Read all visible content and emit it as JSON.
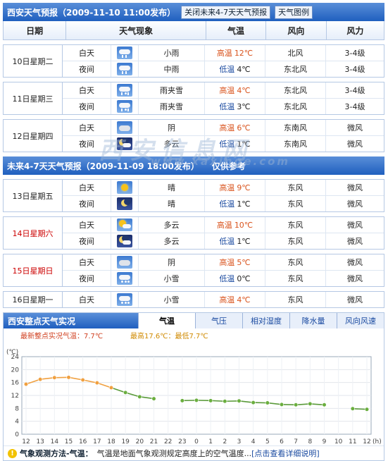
{
  "header": {
    "title": "西安天气预报（2009-11-10 11:00发布）",
    "btn_close": "关闭未来4-7天天气预报",
    "btn_legend": "天气图例"
  },
  "columns": {
    "date": "日期",
    "phenom": "天气现象",
    "temp": "气温",
    "wind_dir": "风向",
    "wind_force": "风力"
  },
  "near_days": [
    {
      "date": "10日星期二",
      "red": false,
      "rows": [
        {
          "period": "白天",
          "icon": "rain",
          "phenom": "小雨",
          "temp_label": "高温",
          "temp": "12℃",
          "low": false,
          "wind_dir": "北风",
          "wind_force": "3-4级"
        },
        {
          "period": "夜间",
          "icon": "rain",
          "phenom": "中雨",
          "temp_label": "低温",
          "temp": "4℃",
          "low": true,
          "wind_dir": "东北风",
          "wind_force": "3-4级"
        }
      ]
    },
    {
      "date": "11日星期三",
      "red": false,
      "rows": [
        {
          "period": "白天",
          "icon": "rs",
          "phenom": "雨夹雪",
          "temp_label": "高温",
          "temp": "4℃",
          "low": false,
          "wind_dir": "东北风",
          "wind_force": "3-4级"
        },
        {
          "period": "夜间",
          "icon": "rs",
          "phenom": "雨夹雪",
          "temp_label": "低温",
          "temp": "3℃",
          "low": true,
          "wind_dir": "东北风",
          "wind_force": "3-4级"
        }
      ]
    },
    {
      "date": "12日星期四",
      "red": false,
      "rows": [
        {
          "period": "白天",
          "icon": "cloud",
          "phenom": "阴",
          "temp_label": "高温",
          "temp": "6℃",
          "low": false,
          "wind_dir": "东南风",
          "wind_force": "微风"
        },
        {
          "period": "夜间",
          "icon": "nightcloud",
          "phenom": "多云",
          "temp_label": "低温",
          "temp": "1℃",
          "low": true,
          "wind_dir": "东南风",
          "wind_force": "微风"
        }
      ]
    }
  ],
  "future_header": {
    "title": "未来4-7天天气预报（2009-11-09 18:00发布）",
    "note": "仅供参考"
  },
  "far_days": [
    {
      "date": "13日星期五",
      "red": false,
      "rows": [
        {
          "period": "白天",
          "icon": "sun",
          "phenom": "晴",
          "temp_label": "高温",
          "temp": "9℃",
          "low": false,
          "wind_dir": "东风",
          "wind_force": "微风"
        },
        {
          "period": "夜间",
          "icon": "moon",
          "phenom": "晴",
          "temp_label": "低温",
          "temp": "1℃",
          "low": true,
          "wind_dir": "东风",
          "wind_force": "微风"
        }
      ]
    },
    {
      "date": "14日星期六",
      "red": true,
      "rows": [
        {
          "period": "白天",
          "icon": "suncloud",
          "phenom": "多云",
          "temp_label": "高温",
          "temp": "10℃",
          "low": false,
          "wind_dir": "东风",
          "wind_force": "微风"
        },
        {
          "period": "夜间",
          "icon": "nightcloud",
          "phenom": "多云",
          "temp_label": "低温",
          "temp": "1℃",
          "low": true,
          "wind_dir": "东风",
          "wind_force": "微风"
        }
      ]
    },
    {
      "date": "15日星期日",
      "red": true,
      "rows": [
        {
          "period": "白天",
          "icon": "cloud",
          "phenom": "阴",
          "temp_label": "高温",
          "temp": "5℃",
          "low": false,
          "wind_dir": "东风",
          "wind_force": "微风"
        },
        {
          "period": "夜间",
          "icon": "snow",
          "phenom": "小雪",
          "temp_label": "低温",
          "temp": "0℃",
          "low": true,
          "wind_dir": "东风",
          "wind_force": "微风"
        }
      ]
    },
    {
      "date": "16日星期一",
      "red": false,
      "rows": [
        {
          "period": "白天",
          "icon": "snow",
          "phenom": "小雪",
          "temp_label": "高温",
          "temp": "4℃",
          "low": false,
          "wind_dir": "东风",
          "wind_force": "微风"
        }
      ]
    }
  ],
  "watermark": {
    "big": "西安信息网",
    "small": "www.xaxinge.com"
  },
  "live": {
    "title": "西安整点天气实况",
    "tabs": [
      "气温",
      "气压",
      "相对湿度",
      "降水量",
      "风向风速"
    ],
    "active_tab": 0
  },
  "chart_data": {
    "type": "line",
    "unit_label": "(℃)",
    "x_unit": "(h)",
    "latest_text": "最新整点实况气温：7.7℃",
    "maxmin_text": "最高17.6℃：最低7.7℃",
    "ylim": [
      0,
      24
    ],
    "yticks": [
      0,
      4,
      8,
      12,
      16,
      20,
      24
    ],
    "categories": [
      "12",
      "13",
      "14",
      "15",
      "16",
      "17",
      "18",
      "19",
      "20",
      "21",
      "22",
      "23",
      "0",
      "1",
      "2",
      "3",
      "4",
      "5",
      "6",
      "7",
      "8",
      "9",
      "10",
      "11",
      "12"
    ],
    "series": [
      {
        "values": [
          15.5,
          17.0,
          17.5,
          17.6,
          16.8,
          15.9,
          14.4,
          12.9,
          11.6,
          11.0,
          null,
          10.4,
          10.5,
          10.4,
          10.2,
          10.3,
          9.8,
          9.7,
          9.2,
          9.1,
          9.4,
          9.1,
          null,
          7.9,
          7.7
        ]
      }
    ],
    "grid": true
  },
  "footer": {
    "label": "气象观测方法-气温：",
    "text": "气温是地面气象观测规定高度上的空气温度...",
    "link": "[点击查看详细说明]"
  },
  "colors": {
    "header_blue": "#1f5fbf",
    "orange_line": "#f0a040",
    "green_line": "#5a9a3a",
    "high_temp": "#d9541e",
    "low_temp": "#1a4aa0"
  }
}
